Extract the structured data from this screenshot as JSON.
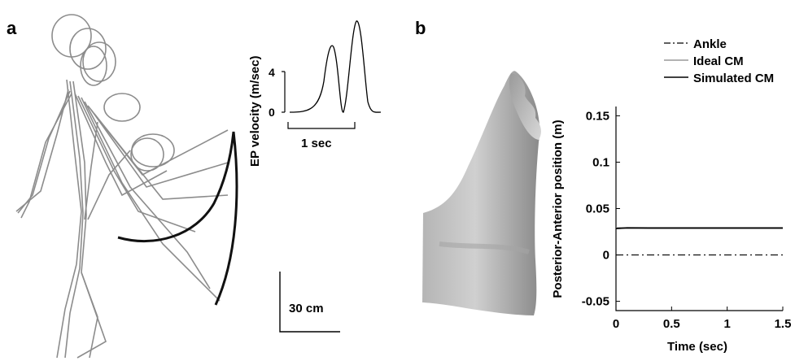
{
  "panels": {
    "a": {
      "letter": "a",
      "inset": {
        "ylabel": "EP velocity (m/sec)",
        "y_ticks": [
          "0",
          "4"
        ],
        "scale_bar": "1 sec"
      },
      "length_scale": "30 cm"
    },
    "b": {
      "letter": "b"
    }
  },
  "chart_data": {
    "type": "line",
    "title": "",
    "xlabel": "Time (sec)",
    "ylabel": "Posterior-Anterior position (m)",
    "xlim": [
      0,
      1.5
    ],
    "ylim": [
      -0.06,
      0.16
    ],
    "x_ticks": [
      0,
      0.5,
      1,
      1.5
    ],
    "x_tick_labels": [
      "0",
      "0.5",
      "1",
      "1.5"
    ],
    "y_ticks": [
      -0.05,
      0,
      0.05,
      0.1,
      0.15
    ],
    "y_tick_labels": [
      "-0.05",
      "0",
      "0.05",
      "0.1",
      "0.15"
    ],
    "grid": false,
    "legend_position": "top",
    "series": [
      {
        "name": "Ankle",
        "style": "dashdot",
        "color": "#000000",
        "x": [
          0,
          1.5
        ],
        "y": [
          0,
          0
        ]
      },
      {
        "name": "Ideal CM",
        "style": "solid",
        "color": "#999999",
        "x": [
          0,
          1.5
        ],
        "y": [
          0.029,
          0.029
        ]
      },
      {
        "name": "Simulated CM",
        "style": "solid",
        "color": "#000000",
        "x": [
          0,
          0.1,
          0.3,
          0.6,
          1.0,
          1.5
        ],
        "y": [
          0.0285,
          0.0292,
          0.029,
          0.029,
          0.029,
          0.029
        ]
      }
    ]
  }
}
